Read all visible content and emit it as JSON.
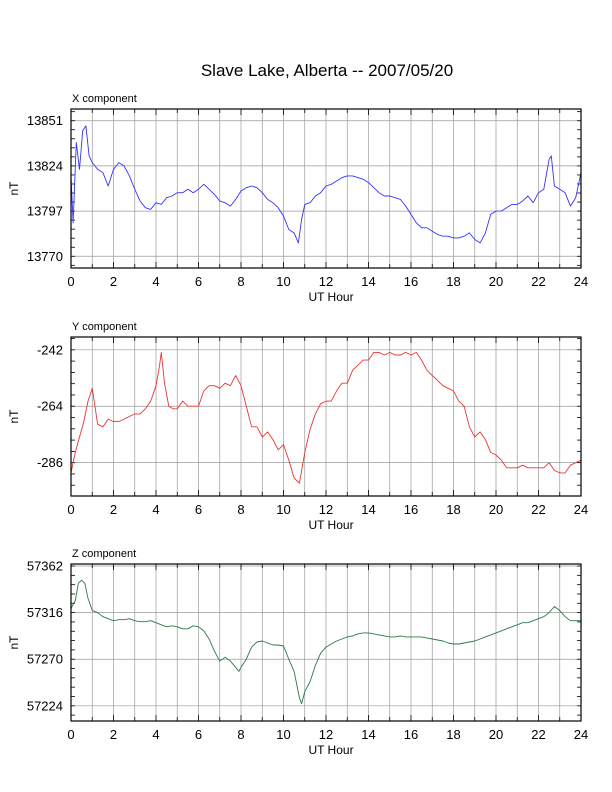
{
  "page": {
    "title": "Slave Lake, Alberta -- 2007/05/20"
  },
  "chart_data": [
    {
      "type": "line",
      "name": "X component",
      "title": "X component",
      "xlabel": "UT Hour",
      "ylabel": "nT",
      "xlim": [
        0,
        24
      ],
      "ylim": [
        13763,
        13858
      ],
      "xticks": [
        "0",
        "2",
        "4",
        "6",
        "8",
        "10",
        "12",
        "14",
        "16",
        "18",
        "20",
        "22",
        "24"
      ],
      "yticks": [
        13851,
        13824,
        13797,
        13770
      ],
      "grid": true,
      "color": "#3333ff",
      "x": [
        0,
        0.1,
        0.25,
        0.4,
        0.55,
        0.7,
        0.85,
        1.0,
        1.25,
        1.5,
        1.75,
        2.0,
        2.25,
        2.5,
        2.75,
        3.0,
        3.25,
        3.5,
        3.75,
        4.0,
        4.25,
        4.5,
        4.75,
        5.0,
        5.25,
        5.5,
        5.75,
        6.0,
        6.25,
        6.5,
        6.75,
        7.0,
        7.25,
        7.5,
        7.75,
        8.0,
        8.25,
        8.5,
        8.75,
        9.0,
        9.25,
        9.5,
        9.75,
        10.0,
        10.25,
        10.5,
        10.7,
        10.85,
        11.0,
        11.25,
        11.5,
        11.75,
        12.0,
        12.25,
        12.5,
        12.75,
        13.0,
        13.25,
        13.5,
        13.75,
        14.0,
        14.25,
        14.5,
        14.75,
        15.0,
        15.25,
        15.5,
        15.75,
        16.0,
        16.25,
        16.5,
        16.75,
        17.0,
        17.25,
        17.5,
        17.75,
        18.0,
        18.25,
        18.5,
        18.75,
        19.0,
        19.25,
        19.5,
        19.75,
        20.0,
        20.25,
        20.5,
        20.75,
        21.0,
        21.25,
        21.5,
        21.75,
        22.0,
        22.25,
        22.5,
        22.6,
        22.75,
        23.0,
        23.25,
        23.5,
        23.75,
        24.0
      ],
      "y": [
        13818,
        13790,
        13838,
        13822,
        13845,
        13848,
        13830,
        13826,
        13822,
        13820,
        13812,
        13822,
        13826,
        13824,
        13818,
        13810,
        13803,
        13799,
        13798,
        13802,
        13801,
        13805,
        13806,
        13808,
        13808,
        13810,
        13808,
        13810,
        13813,
        13810,
        13807,
        13803,
        13802,
        13800,
        13804,
        13809,
        13811,
        13812,
        13811,
        13808,
        13804,
        13802,
        13799,
        13794,
        13786,
        13784,
        13778,
        13792,
        13801,
        13802,
        13806,
        13808,
        13812,
        13813,
        13815,
        13817,
        13818,
        13818,
        13817,
        13816,
        13814,
        13811,
        13808,
        13806,
        13806,
        13805,
        13804,
        13800,
        13795,
        13790,
        13787,
        13787,
        13785,
        13783,
        13782,
        13782,
        13781,
        13781,
        13782,
        13784,
        13780,
        13778,
        13784,
        13795,
        13797,
        13797,
        13799,
        13801,
        13801,
        13803,
        13806,
        13802,
        13808,
        13810,
        13828,
        13830,
        13812,
        13810,
        13808,
        13800,
        13805,
        13820
      ]
    },
    {
      "type": "line",
      "name": "Y component",
      "title": "Y component",
      "xlabel": "UT Hour",
      "ylabel": "nT",
      "xlim": [
        0,
        24
      ],
      "ylim": [
        -299,
        -237
      ],
      "xticks": [
        "0",
        "2",
        "4",
        "6",
        "8",
        "10",
        "12",
        "14",
        "16",
        "18",
        "20",
        "22",
        "24"
      ],
      "yticks": [
        -242,
        -264,
        -286
      ],
      "grid": true,
      "color": "#ee3333",
      "x": [
        0,
        0.2,
        0.4,
        0.6,
        0.8,
        1.0,
        1.25,
        1.5,
        1.75,
        2.0,
        2.25,
        2.5,
        2.75,
        3.0,
        3.25,
        3.5,
        3.75,
        4.0,
        4.15,
        4.25,
        4.4,
        4.6,
        4.8,
        5.0,
        5.25,
        5.5,
        5.75,
        6.0,
        6.25,
        6.5,
        6.75,
        7.0,
        7.25,
        7.5,
        7.75,
        8.0,
        8.25,
        8.5,
        8.75,
        9.0,
        9.25,
        9.5,
        9.75,
        10.0,
        10.25,
        10.5,
        10.75,
        11.0,
        11.25,
        11.5,
        11.75,
        12.0,
        12.25,
        12.5,
        12.75,
        13.0,
        13.25,
        13.5,
        13.75,
        14.0,
        14.25,
        14.5,
        14.75,
        15.0,
        15.25,
        15.5,
        15.75,
        16.0,
        16.25,
        16.5,
        16.75,
        17.0,
        17.25,
        17.5,
        17.75,
        18.0,
        18.25,
        18.5,
        18.75,
        19.0,
        19.25,
        19.5,
        19.75,
        20.0,
        20.25,
        20.5,
        20.75,
        21.0,
        21.25,
        21.5,
        21.75,
        22.0,
        22.25,
        22.5,
        22.75,
        23.0,
        23.25,
        23.5,
        23.75,
        24.0
      ],
      "y": [
        -290,
        -282,
        -276,
        -270,
        -262,
        -257,
        -271,
        -272,
        -269,
        -270,
        -270,
        -269,
        -268,
        -267,
        -267,
        -265,
        -262,
        -256,
        -249,
        -243,
        -255,
        -264,
        -265,
        -265,
        -262,
        -264,
        -264,
        -264,
        -258,
        -256,
        -256,
        -257,
        -255,
        -256,
        -252,
        -256,
        -264,
        -272,
        -272,
        -276,
        -274,
        -277,
        -281,
        -279,
        -285,
        -292,
        -294,
        -282,
        -273,
        -267,
        -263,
        -262,
        -262,
        -258,
        -255,
        -255,
        -250,
        -248,
        -246,
        -246,
        -243,
        -243,
        -244,
        -243,
        -244,
        -244,
        -243,
        -244,
        -243,
        -246,
        -250,
        -252,
        -254,
        -256,
        -257,
        -258,
        -262,
        -264,
        -272,
        -276,
        -274,
        -277,
        -282,
        -283,
        -285,
        -288,
        -288,
        -288,
        -287,
        -288,
        -288,
        -288,
        -288,
        -286,
        -289,
        -290,
        -290,
        -287,
        -286,
        -285
      ]
    },
    {
      "type": "line",
      "name": "Z component",
      "title": "Z component",
      "xlabel": "UT Hour",
      "ylabel": "nT",
      "xlim": [
        0,
        24
      ],
      "ylim": [
        57209,
        57364
      ],
      "xticks": [
        "0",
        "2",
        "4",
        "6",
        "8",
        "10",
        "12",
        "14",
        "16",
        "18",
        "20",
        "22",
        "24"
      ],
      "yticks": [
        57362,
        57316,
        57270,
        57224
      ],
      "grid": true,
      "color": "#2a7a48",
      "x": [
        0,
        0.2,
        0.35,
        0.5,
        0.65,
        0.8,
        1.0,
        1.25,
        1.5,
        1.75,
        2.0,
        2.25,
        2.5,
        2.75,
        3.0,
        3.25,
        3.5,
        3.75,
        4.0,
        4.25,
        4.5,
        4.75,
        5.0,
        5.25,
        5.5,
        5.75,
        6.0,
        6.25,
        6.5,
        6.75,
        7.0,
        7.25,
        7.5,
        7.75,
        7.9,
        8.0,
        8.25,
        8.5,
        8.75,
        9.0,
        9.25,
        9.5,
        9.75,
        10.0,
        10.25,
        10.5,
        10.75,
        10.85,
        11.0,
        11.25,
        11.5,
        11.75,
        12.0,
        12.25,
        12.5,
        12.75,
        13.0,
        13.25,
        13.5,
        13.75,
        14.0,
        14.25,
        14.5,
        14.75,
        15.0,
        15.25,
        15.5,
        15.75,
        16.0,
        16.25,
        16.5,
        16.75,
        17.0,
        17.25,
        17.5,
        17.75,
        18.0,
        18.25,
        18.5,
        18.75,
        19.0,
        19.25,
        19.5,
        19.75,
        20.0,
        20.25,
        20.5,
        20.75,
        21.0,
        21.25,
        21.5,
        21.75,
        22.0,
        22.25,
        22.5,
        22.75,
        23.0,
        23.25,
        23.5,
        23.75,
        24.0
      ],
      "y": [
        57320,
        57328,
        57345,
        57348,
        57345,
        57330,
        57318,
        57316,
        57312,
        57310,
        57308,
        57309,
        57309,
        57310,
        57308,
        57307,
        57307,
        57308,
        57306,
        57304,
        57302,
        57303,
        57302,
        57300,
        57300,
        57303,
        57302,
        57298,
        57290,
        57278,
        57268,
        57272,
        57268,
        57262,
        57258,
        57262,
        57270,
        57282,
        57287,
        57288,
        57286,
        57284,
        57284,
        57283,
        57270,
        57258,
        57232,
        57226,
        57238,
        57248,
        57264,
        57276,
        57282,
        57285,
        57288,
        57290,
        57292,
        57293,
        57295,
        57296,
        57296,
        57295,
        57294,
        57293,
        57292,
        57292,
        57293,
        57292,
        57292,
        57292,
        57292,
        57291,
        57290,
        57289,
        57288,
        57286,
        57285,
        57285,
        57286,
        57287,
        57288,
        57290,
        57292,
        57294,
        57296,
        57298,
        57300,
        57302,
        57304,
        57306,
        57306,
        57308,
        57310,
        57312,
        57316,
        57322,
        57318,
        57312,
        57308,
        57308,
        57308
      ]
    }
  ]
}
